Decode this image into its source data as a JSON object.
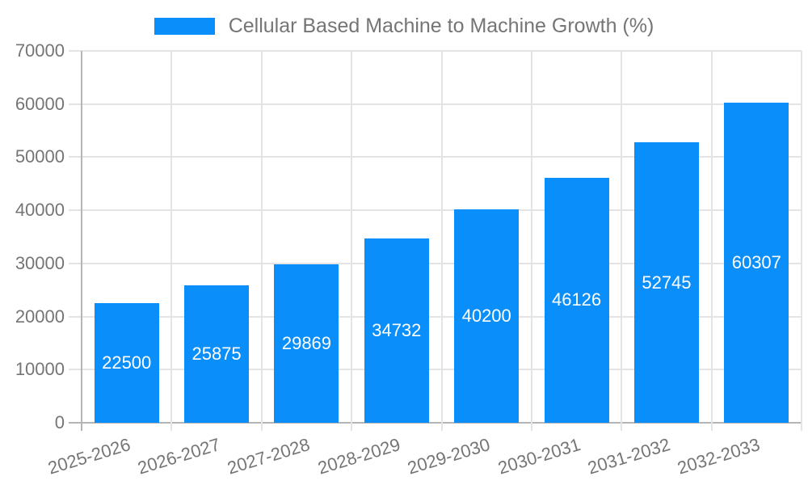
{
  "chart_data": {
    "type": "bar",
    "title": "",
    "legend_position": "top",
    "categories": [
      "2025-2026",
      "2026-2027",
      "2027-2028",
      "2028-2029",
      "2029-2030",
      "2030-2031",
      "2031-2032",
      "2032-2033"
    ],
    "series": [
      {
        "name": "Cellular Based Machine to Machine Growth (%)",
        "values": [
          22500,
          25875,
          29869,
          34732,
          40200,
          46126,
          52745,
          60307
        ]
      }
    ],
    "value_labels": [
      "22500",
      "25875",
      "29869",
      "34732",
      "40200",
      "46126",
      "52745",
      "60307"
    ],
    "xlabel": "",
    "ylabel": "",
    "ylim": [
      0,
      70000
    ],
    "yticks": [
      0,
      10000,
      20000,
      30000,
      40000,
      50000,
      60000,
      70000
    ],
    "grid": true,
    "colors": {
      "bar": "#0a8ef9",
      "value_label": "#ffffff",
      "axis_text": "#757575",
      "legend_text": "#757575",
      "gridline": "#e4e4e4",
      "axis_line": "#b5b5b5",
      "background": "#ffffff"
    }
  }
}
